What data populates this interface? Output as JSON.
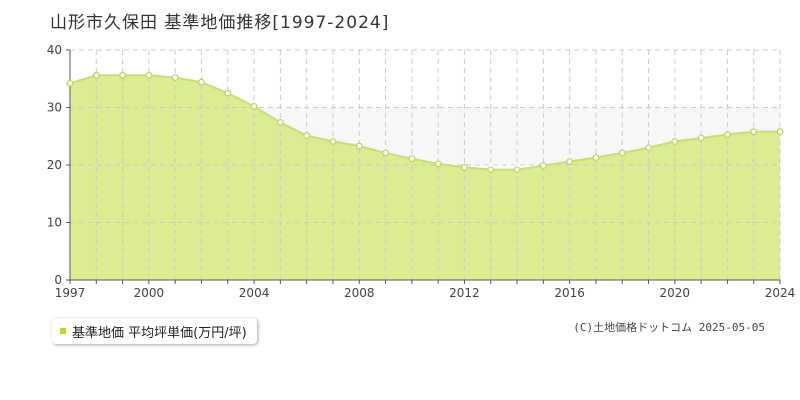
{
  "page": {
    "title": "山形市久保田 基準地価推移[1997-2024]",
    "copyright": "(C)土地価格ドットコム 2025-05-05"
  },
  "colors": {
    "area_fill": "#dbec92",
    "line": "#c6e06a",
    "marker_fill": "#ffffff",
    "marker_stroke": "#b9d752",
    "grid": "#cccccc",
    "axis": "#555555",
    "band_fill": "#f7f7f7",
    "legend_swatch": "#b7d936"
  },
  "chart_data": {
    "type": "area",
    "title": "山形市久保田 基準地価推移[1997-2024]",
    "xlabel": "",
    "ylabel": "",
    "xlim": [
      1997,
      2024
    ],
    "ylim": [
      0,
      40
    ],
    "x_ticks": [
      1997,
      2000,
      2004,
      2008,
      2012,
      2016,
      2020,
      2024
    ],
    "y_ticks": [
      0,
      10,
      20,
      30,
      40
    ],
    "grid": true,
    "legend": "bottom-left",
    "series": [
      {
        "name": "基準地価 平均坪単価(万円/坪)",
        "x": [
          1997,
          1998,
          1999,
          2000,
          2001,
          2002,
          2003,
          2004,
          2005,
          2006,
          2007,
          2008,
          2009,
          2010,
          2011,
          2012,
          2013,
          2014,
          2015,
          2016,
          2017,
          2018,
          2019,
          2020,
          2021,
          2022,
          2023,
          2024
        ],
        "values": [
          34.2,
          35.6,
          35.6,
          35.6,
          35.2,
          34.4,
          32.5,
          30.2,
          27.4,
          25.1,
          24.1,
          23.3,
          22.1,
          21.1,
          20.2,
          19.6,
          19.2,
          19.2,
          19.9,
          20.6,
          21.3,
          22.1,
          23.0,
          24.1,
          24.7,
          25.3,
          25.8,
          25.8
        ]
      }
    ]
  }
}
